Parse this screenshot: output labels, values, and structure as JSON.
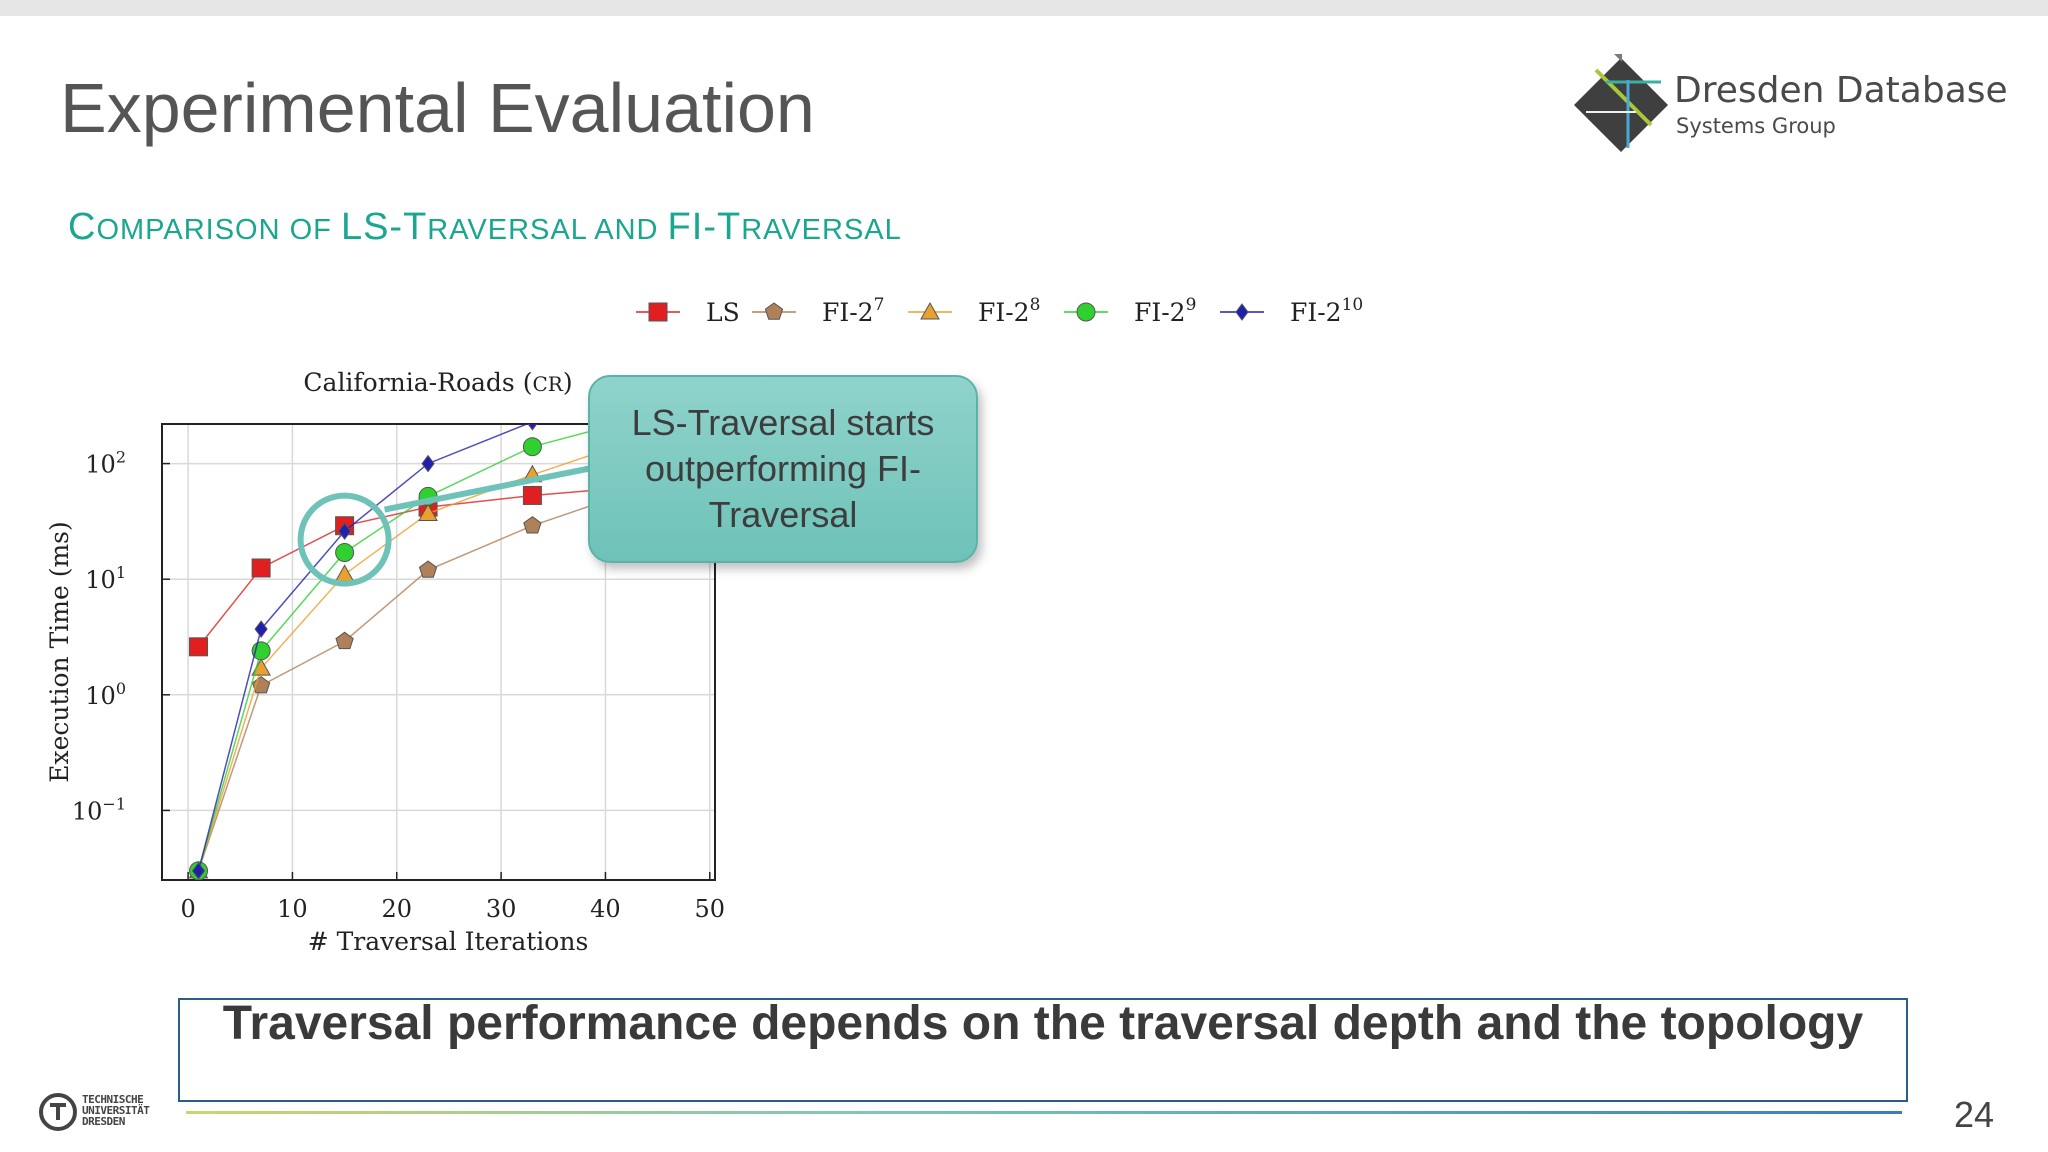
{
  "slide": {
    "title": "Experimental Evaluation",
    "subtitle_parts": [
      "C",
      "omparison of ",
      "LS-T",
      "raversal and ",
      "FI-T",
      "raversal"
    ],
    "page_number": "24",
    "conclusion": "Traversal performance depends on the traversal depth and the topology",
    "callout": "LS-Traversal starts outperforming FI-Traversal"
  },
  "logo": {
    "main": "Dresden Database",
    "sub": "Systems Group"
  },
  "university_logo": {
    "lines": [
      "TECHNISCHE",
      "UNIVERSITÄT",
      "DRESDEN"
    ]
  },
  "chart_data": {
    "type": "line",
    "title": "California-Roads (CR)",
    "title_main": "California-Roads (",
    "title_abbrev": "CR",
    "title_close": ")",
    "xlabel": "# Traversal Iterations",
    "ylabel": "Execution Time (ms)",
    "xlim": [
      -2.5,
      50.5
    ],
    "ylim": [
      0.025,
      220
    ],
    "y_scale": "log",
    "x_ticks": [
      0,
      10,
      20,
      30,
      40,
      50
    ],
    "y_ticks": [
      {
        "value": 0.1,
        "base": "10",
        "exp": "−1"
      },
      {
        "value": 1,
        "base": "10",
        "exp": "0"
      },
      {
        "value": 10,
        "base": "10",
        "exp": "1"
      },
      {
        "value": 100,
        "base": "10",
        "exp": "2"
      }
    ],
    "grid": true,
    "legend_position": "top",
    "series": [
      {
        "name": "LS",
        "name_base": "LS",
        "name_exp": "",
        "color": "#e02020",
        "marker": "square",
        "x": [
          1,
          7,
          15,
          23,
          33,
          42
        ],
        "y": [
          2.6,
          12.5,
          29,
          42,
          53,
          62
        ]
      },
      {
        "name": "FI-2^7",
        "name_base": "FI-2",
        "name_exp": "7",
        "color": "#b08058",
        "marker": "pentagon",
        "x": [
          1,
          7,
          15,
          23,
          33,
          42
        ],
        "y": [
          0.03,
          1.2,
          2.9,
          12,
          29,
          55
        ]
      },
      {
        "name": "FI-2^8",
        "name_base": "FI-2",
        "name_exp": "8",
        "color": "#e8a030",
        "marker": "triangle",
        "x": [
          1,
          7,
          15,
          23,
          33,
          42
        ],
        "y": [
          0.03,
          1.7,
          11,
          37,
          80,
          150
        ]
      },
      {
        "name": "FI-2^9",
        "name_base": "FI-2",
        "name_exp": "9",
        "color": "#30d030",
        "marker": "circle",
        "x": [
          1,
          7,
          15,
          23,
          33,
          42
        ],
        "y": [
          0.03,
          2.4,
          17,
          52,
          140,
          230
        ]
      },
      {
        "name": "FI-2^10",
        "name_base": "FI-2",
        "name_exp": "10",
        "color": "#2020b0",
        "marker": "diamond",
        "x": [
          1,
          7,
          15,
          23,
          33
        ],
        "y": [
          0.03,
          3.7,
          26,
          100,
          230
        ]
      }
    ],
    "highlight": {
      "x": 15,
      "y": 22
    }
  }
}
